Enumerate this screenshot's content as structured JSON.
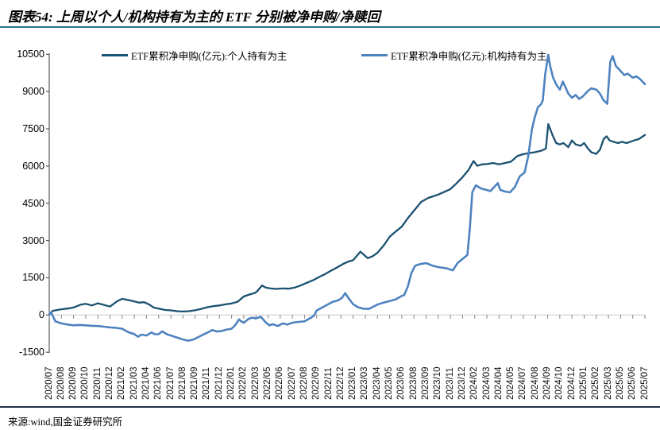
{
  "title": "图表54: 上周以个人/机构持有为主的 ETF 分别被净申购/净赎回",
  "footer": {
    "source_label": "来源:wind,国金证券研究所"
  },
  "colors": {
    "title_rule": "#2a7090",
    "footer_rule": "#1f3347",
    "zero_line": "#c9c9c9",
    "axis_line": "#595959",
    "tick_mark": "#808080"
  },
  "chart_data": {
    "type": "line",
    "title": "",
    "xlabel": "",
    "ylabel": "",
    "ylim": [
      -1500,
      10500
    ],
    "y_ticks": [
      10500,
      9000,
      7500,
      6000,
      4500,
      3000,
      1500,
      0,
      -1500
    ],
    "grid": "zero-line-only",
    "legend_position": "top",
    "x_tick_labels": [
      "2020/07",
      "2020/08",
      "2020/09",
      "2020/10",
      "2020/11",
      "2020/12",
      "2021/02",
      "2021/03",
      "2021/04",
      "2021/06",
      "2021/07",
      "2021/08",
      "2021/09",
      "2021/11",
      "2021/12",
      "2022/01",
      "2022/02",
      "2022/03",
      "2022/05",
      "2022/06",
      "2022/07",
      "2022/08",
      "2022/09",
      "2022/11",
      "2022/12",
      "2023/01",
      "2023/03",
      "2023/04",
      "2023/05",
      "2023/06",
      "2023/08",
      "2023/09",
      "2023/10",
      "2023/11",
      "2023/12",
      "2024/02",
      "2024/03",
      "2024/04",
      "2024/05",
      "2024/07",
      "2024/08",
      "2024/09",
      "2024/10",
      "2024/12",
      "2025/01",
      "2025/02",
      "2025/03",
      "2025/05",
      "2025/06",
      "2025/07"
    ],
    "x_unit": "label-index",
    "series": [
      {
        "name": "ETF累积净申购(亿元):个人持有为主",
        "color": "#1b5171",
        "points": [
          [
            0,
            20
          ],
          [
            0.3,
            170
          ],
          [
            1,
            230
          ],
          [
            1.5,
            260
          ],
          [
            2,
            300
          ],
          [
            2.6,
            420
          ],
          [
            3,
            450
          ],
          [
            3.5,
            385
          ],
          [
            4,
            470
          ],
          [
            4.5,
            405
          ],
          [
            5,
            340
          ],
          [
            5.6,
            560
          ],
          [
            6,
            650
          ],
          [
            6.4,
            615
          ],
          [
            7,
            545
          ],
          [
            7.4,
            495
          ],
          [
            7.8,
            515
          ],
          [
            8.2,
            430
          ],
          [
            8.6,
            300
          ],
          [
            9,
            255
          ],
          [
            9.5,
            205
          ],
          [
            10,
            185
          ],
          [
            10.6,
            150
          ],
          [
            11,
            140
          ],
          [
            11.5,
            155
          ],
          [
            12,
            190
          ],
          [
            12.5,
            245
          ],
          [
            13,
            315
          ],
          [
            13.5,
            355
          ],
          [
            14,
            385
          ],
          [
            14.5,
            430
          ],
          [
            15,
            465
          ],
          [
            15.5,
            535
          ],
          [
            16,
            745
          ],
          [
            16.5,
            830
          ],
          [
            16.9,
            885
          ],
          [
            17.1,
            950
          ],
          [
            17.5,
            1190
          ],
          [
            17.8,
            1105
          ],
          [
            18.2,
            1070
          ],
          [
            18.7,
            1050
          ],
          [
            19.2,
            1070
          ],
          [
            19.7,
            1060
          ],
          [
            20.2,
            1105
          ],
          [
            20.7,
            1190
          ],
          [
            21.2,
            1300
          ],
          [
            21.7,
            1400
          ],
          [
            22.2,
            1530
          ],
          [
            22.7,
            1650
          ],
          [
            23.2,
            1790
          ],
          [
            23.7,
            1920
          ],
          [
            24.2,
            2060
          ],
          [
            24.6,
            2150
          ],
          [
            25,
            2210
          ],
          [
            25.6,
            2550
          ],
          [
            26.2,
            2290
          ],
          [
            26.6,
            2365
          ],
          [
            27,
            2510
          ],
          [
            27.5,
            2790
          ],
          [
            28,
            3150
          ],
          [
            28.5,
            3360
          ],
          [
            29,
            3560
          ],
          [
            29.5,
            3900
          ],
          [
            30,
            4200
          ],
          [
            30.6,
            4560
          ],
          [
            31.2,
            4720
          ],
          [
            32,
            4850
          ],
          [
            32.5,
            4960
          ],
          [
            33,
            5070
          ],
          [
            33.5,
            5300
          ],
          [
            34,
            5550
          ],
          [
            34.5,
            5850
          ],
          [
            34.9,
            6200
          ],
          [
            35.2,
            6010
          ],
          [
            35.6,
            6065
          ],
          [
            36,
            6080
          ],
          [
            36.5,
            6120
          ],
          [
            37,
            6070
          ],
          [
            37.5,
            6120
          ],
          [
            38,
            6180
          ],
          [
            38.5,
            6400
          ],
          [
            39,
            6480
          ],
          [
            39.5,
            6520
          ],
          [
            40,
            6560
          ],
          [
            40.5,
            6620
          ],
          [
            40.85,
            6700
          ],
          [
            41.05,
            7690
          ],
          [
            41.4,
            7245
          ],
          [
            41.7,
            6925
          ],
          [
            42,
            6870
          ],
          [
            42.3,
            6925
          ],
          [
            42.7,
            6760
          ],
          [
            43,
            7030
          ],
          [
            43.3,
            6870
          ],
          [
            43.7,
            6815
          ],
          [
            44,
            6925
          ],
          [
            44.3,
            6710
          ],
          [
            44.6,
            6550
          ],
          [
            45,
            6490
          ],
          [
            45.3,
            6655
          ],
          [
            45.6,
            7085
          ],
          [
            45.85,
            7195
          ],
          [
            46.1,
            7030
          ],
          [
            46.4,
            6975
          ],
          [
            46.8,
            6925
          ],
          [
            47.1,
            6975
          ],
          [
            47.5,
            6925
          ],
          [
            47.8,
            6975
          ],
          [
            48.1,
            7030
          ],
          [
            48.5,
            7085
          ],
          [
            49,
            7250
          ]
        ]
      },
      {
        "name": "ETF累积净申购(亿元):机构持有为主",
        "color": "#4e83c0",
        "points": [
          [
            0,
            0
          ],
          [
            0.15,
            110
          ],
          [
            0.5,
            -255
          ],
          [
            1,
            -340
          ],
          [
            1.5,
            -385
          ],
          [
            2,
            -415
          ],
          [
            2.5,
            -400
          ],
          [
            3,
            -415
          ],
          [
            3.5,
            -435
          ],
          [
            4,
            -445
          ],
          [
            4.5,
            -470
          ],
          [
            5,
            -500
          ],
          [
            5.5,
            -520
          ],
          [
            6,
            -555
          ],
          [
            6.5,
            -690
          ],
          [
            7,
            -770
          ],
          [
            7.3,
            -875
          ],
          [
            7.6,
            -790
          ],
          [
            8,
            -825
          ],
          [
            8.4,
            -705
          ],
          [
            8.7,
            -775
          ],
          [
            9,
            -770
          ],
          [
            9.3,
            -655
          ],
          [
            9.7,
            -785
          ],
          [
            10,
            -825
          ],
          [
            10.5,
            -905
          ],
          [
            11,
            -985
          ],
          [
            11.4,
            -1035
          ],
          [
            11.8,
            -1000
          ],
          [
            12.2,
            -905
          ],
          [
            12.6,
            -805
          ],
          [
            13,
            -715
          ],
          [
            13.4,
            -605
          ],
          [
            13.8,
            -665
          ],
          [
            14.2,
            -645
          ],
          [
            14.6,
            -585
          ],
          [
            15,
            -555
          ],
          [
            15.3,
            -405
          ],
          [
            15.6,
            -180
          ],
          [
            15.8,
            -255
          ],
          [
            16,
            -310
          ],
          [
            16.4,
            -155
          ],
          [
            16.7,
            -105
          ],
          [
            17,
            -140
          ],
          [
            17.4,
            -70
          ],
          [
            17.8,
            -290
          ],
          [
            18.1,
            -415
          ],
          [
            18.4,
            -370
          ],
          [
            18.8,
            -445
          ],
          [
            19.2,
            -340
          ],
          [
            19.6,
            -385
          ],
          [
            20,
            -310
          ],
          [
            20.5,
            -280
          ],
          [
            21,
            -255
          ],
          [
            21.5,
            -120
          ],
          [
            21.8,
            -15
          ],
          [
            22,
            180
          ],
          [
            22.7,
            365
          ],
          [
            23.3,
            525
          ],
          [
            23.8,
            600
          ],
          [
            24.1,
            700
          ],
          [
            24.35,
            880
          ],
          [
            24.6,
            690
          ],
          [
            25,
            430
          ],
          [
            25.4,
            315
          ],
          [
            25.8,
            255
          ],
          [
            26.3,
            245
          ],
          [
            26.7,
            345
          ],
          [
            27,
            420
          ],
          [
            27.5,
            500
          ],
          [
            28,
            560
          ],
          [
            28.5,
            630
          ],
          [
            29,
            770
          ],
          [
            29.2,
            800
          ],
          [
            29.5,
            1150
          ],
          [
            29.8,
            1700
          ],
          [
            30.1,
            1980
          ],
          [
            30.5,
            2050
          ],
          [
            31,
            2090
          ],
          [
            31.5,
            1990
          ],
          [
            32,
            1930
          ],
          [
            32.7,
            1880
          ],
          [
            33.2,
            1800
          ],
          [
            33.6,
            2100
          ],
          [
            34.1,
            2300
          ],
          [
            34.4,
            2420
          ],
          [
            34.6,
            3500
          ],
          [
            34.8,
            4950
          ],
          [
            35.1,
            5225
          ],
          [
            35.5,
            5100
          ],
          [
            36.3,
            4990
          ],
          [
            36.9,
            5310
          ],
          [
            37.1,
            5040
          ],
          [
            37.5,
            4970
          ],
          [
            37.9,
            4940
          ],
          [
            38.3,
            5150
          ],
          [
            38.7,
            5580
          ],
          [
            39.1,
            5740
          ],
          [
            39.4,
            6390
          ],
          [
            39.7,
            7465
          ],
          [
            39.9,
            7890
          ],
          [
            40.2,
            8375
          ],
          [
            40.45,
            8480
          ],
          [
            40.6,
            8645
          ],
          [
            40.8,
            9700
          ],
          [
            41.05,
            10480
          ],
          [
            41.2,
            10040
          ],
          [
            41.45,
            9560
          ],
          [
            41.7,
            9290
          ],
          [
            42,
            9075
          ],
          [
            42.25,
            9400
          ],
          [
            42.7,
            8915
          ],
          [
            43,
            8750
          ],
          [
            43.3,
            8860
          ],
          [
            43.6,
            8700
          ],
          [
            43.9,
            8805
          ],
          [
            44.3,
            9020
          ],
          [
            44.6,
            9130
          ],
          [
            45,
            9075
          ],
          [
            45.3,
            8915
          ],
          [
            45.6,
            8645
          ],
          [
            45.9,
            8505
          ],
          [
            46.15,
            10200
          ],
          [
            46.35,
            10430
          ],
          [
            46.6,
            10040
          ],
          [
            47,
            9825
          ],
          [
            47.3,
            9665
          ],
          [
            47.6,
            9720
          ],
          [
            48,
            9560
          ],
          [
            48.3,
            9610
          ],
          [
            48.6,
            9500
          ],
          [
            49,
            9300
          ]
        ]
      }
    ]
  }
}
